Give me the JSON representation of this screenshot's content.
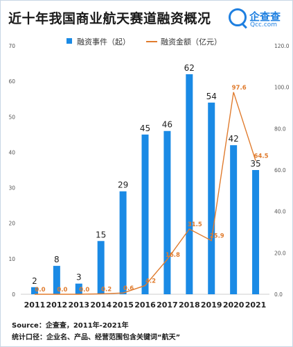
{
  "header": {
    "title": "近十年我国商业航天赛道融资概况",
    "logo_name": "企查查",
    "logo_url": "Qcc.com"
  },
  "chart_data": {
    "type": "bar",
    "categories": [
      "2011",
      "2012",
      "2013",
      "2014",
      "2015",
      "2016",
      "2017",
      "2018",
      "2019",
      "2020",
      "2021"
    ],
    "series": [
      {
        "name": "融资事件（起）",
        "type": "bar",
        "axis": "left",
        "color": "#1a8ae5",
        "values": [
          2,
          8,
          3,
          15,
          29,
          45,
          46,
          62,
          54,
          42,
          35
        ],
        "labels": [
          "2",
          "8",
          "3",
          "15",
          "29",
          "45",
          "46",
          "62",
          "54",
          "42",
          "35"
        ]
      },
      {
        "name": "融资金额（亿元）",
        "type": "line",
        "axis": "right",
        "color": "#e07b2d",
        "values": [
          0.0,
          0.0,
          0.0,
          0.2,
          0.6,
          4.2,
          16.8,
          31.5,
          25.9,
          97.6,
          64.5
        ],
        "labels": [
          "0.0",
          "0.0",
          "0.0",
          "0.2",
          "0.6",
          "4.2",
          "16.8",
          "31.5",
          "25.9",
          "97.6",
          "64.5"
        ]
      }
    ],
    "y_left": {
      "min": 0,
      "max": 70,
      "ticks": [
        "0",
        "10",
        "20",
        "30",
        "40",
        "50",
        "60",
        "70"
      ]
    },
    "y_right": {
      "min": 0,
      "max": 120,
      "ticks": [
        "0.0",
        "20.0",
        "40.0",
        "60.0",
        "80.0",
        "100.0",
        "120.0"
      ]
    },
    "legend_position": "top-center"
  },
  "footer": {
    "source": "Source：企查查，2011年-2021年",
    "scope": "统计口径：企业名、产品、经营范围包含关键词“航天”"
  }
}
